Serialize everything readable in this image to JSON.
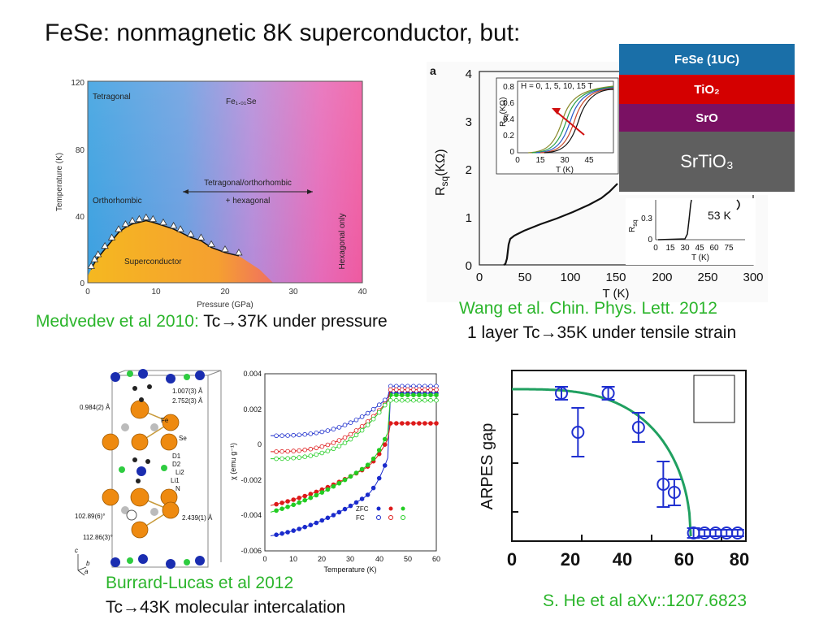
{
  "slide": {
    "title": "FeSe: nonmagnetic 8K superconductor, but:"
  },
  "captions": {
    "medvedev_green": "Medvedev et al 2010:",
    "medvedev_black": " Tc→37K under pressure",
    "wang_green": "Wang et al. Chin. Phys. Lett. 2012",
    "wang_black": "1 layer Tc→35K under tensile strain",
    "burrard_green": "Burrard-Lucas et al 2012",
    "burrard_black": "Tc→43K molecular intercalation",
    "he_green": "S. He et al aXv::1207.6823"
  },
  "phase_diagram": {
    "y_ticks": [
      "0",
      "40",
      "80",
      "120"
    ],
    "x_ticks": [
      "0",
      "10",
      "20",
      "30",
      "40"
    ],
    "ylabel": "Temperature (K)",
    "xlabel": "Pressure (GPa)",
    "labels": {
      "tetragonal": "Tetragonal",
      "compound": "Fe₁.₀₁Se",
      "tet_ortho": "Tetragonal/orthorhombic",
      "hex_plus": "+ hexagonal",
      "orthorhombic": "Orthorhombic",
      "superconductor": "Superconductor",
      "hex_only": "Hexagonal only"
    },
    "tc_points": [
      [
        0.5,
        8
      ],
      [
        1,
        12
      ],
      [
        1.5,
        15
      ],
      [
        2.5,
        20
      ],
      [
        3.5,
        25
      ],
      [
        4.5,
        30
      ],
      [
        5.5,
        33
      ],
      [
        6.5,
        35
      ],
      [
        7.5,
        36
      ],
      [
        8.5,
        37
      ],
      [
        9.5,
        36
      ],
      [
        11,
        34
      ],
      [
        12.5,
        32
      ],
      [
        13.5,
        30
      ],
      [
        15,
        27
      ],
      [
        16.5,
        25
      ],
      [
        18,
        21
      ],
      [
        20,
        18
      ],
      [
        22,
        16
      ]
    ]
  },
  "resistance": {
    "panel_label": "a",
    "y_ticks": [
      "0",
      "1",
      "2",
      "3",
      "4"
    ],
    "x_ticks": [
      "0",
      "50",
      "100",
      "150",
      "200",
      "250",
      "300"
    ],
    "xlabel": "T (K)",
    "ylabel": "R",
    "ylabel_sub": "sq",
    "ylabel_unit": "(KΩ)",
    "inset1": {
      "legend": "H = 0, 1, 5, 10, 15 T",
      "y_ticks": [
        "0",
        "0.2",
        "0.4",
        "0.6",
        "0.8"
      ],
      "x_ticks": [
        "0",
        "15",
        "30",
        "45"
      ],
      "xlabel": "T (K)",
      "ylabel": "R",
      "ylabel_sub": "sq",
      "ylabel_unit": "(KΩ)"
    },
    "inset2": {
      "y_ticks": [
        "0",
        "0.3"
      ],
      "x_ticks": [
        "0",
        "15",
        "30",
        "45",
        "60",
        "75"
      ],
      "xlabel": "T (K)",
      "ylabel": "R",
      "ylabel_sub": "sq",
      "label_53k": "53 K"
    }
  },
  "layers": {
    "items": [
      {
        "label": "FeSe (1UC)",
        "color": "#1a6fa8"
      },
      {
        "label": "TiO₂",
        "color": "#d40000"
      },
      {
        "label": "SrO",
        "color": "#7a1163"
      },
      {
        "label": "SrTiO₃",
        "color": "#5f5f5f"
      }
    ]
  },
  "structure": {
    "labels": {
      "d1": "1.007(3) Å",
      "d2": "2.752(3) Å",
      "d3": "0.984(2) Å",
      "fe": "Fe",
      "se": "Se",
      "dd1": "D1",
      "dd2": "D2",
      "li2": "Li2",
      "li1": "Li1",
      "n": "N",
      "a1": "102.89(6)°",
      "a2": "112.86(3)°",
      "d4": "2.439(1) Å",
      "axis_c": "c",
      "axis_b": "b",
      "axis_a": "a"
    }
  },
  "susceptibility": {
    "y_ticks": [
      "0.004",
      "0.002",
      "0",
      "-0.002",
      "-0.004",
      "-0.006"
    ],
    "x_ticks": [
      "0",
      "10",
      "20",
      "30",
      "40",
      "50",
      "60"
    ],
    "xlabel": "Temperature (K)",
    "ylabel": "χ (emu g⁻¹)",
    "legend_zfc": "ZFC",
    "legend_fc": "FC",
    "colors": {
      "blue": "#1a2bcc",
      "red": "#dd1a1a",
      "green": "#22cc22"
    }
  },
  "arpes": {
    "x_ticks": [
      "0",
      "20",
      "40",
      "60",
      "80"
    ],
    "ylabel": "ARPES gap",
    "points": [
      [
        18,
        0.88,
        0.04
      ],
      [
        24,
        0.64,
        0.15
      ],
      [
        35,
        0.88,
        0.04
      ],
      [
        46,
        0.67,
        0.09
      ],
      [
        55,
        0.32,
        0.14
      ],
      [
        59,
        0.27,
        0.08
      ],
      [
        66,
        0.02,
        0.03
      ],
      [
        70,
        0.02,
        0.02
      ],
      [
        74,
        0.02,
        0.02
      ],
      [
        78,
        0.02,
        0.02
      ],
      [
        82,
        0.02,
        0.02
      ]
    ]
  }
}
